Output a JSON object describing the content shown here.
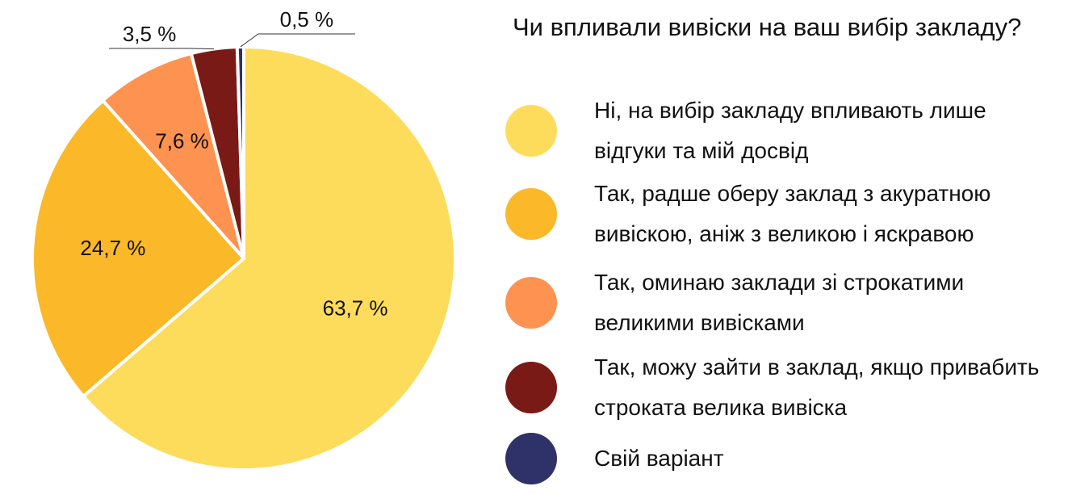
{
  "chart_data": {
    "type": "pie",
    "title": "Чи впливали вивіски на ваш вибір закладу?",
    "categories": [
      "Ні, на вибір закладу впливають лише відгуки та мій досвід",
      "Так, радше оберу заклад з акуратною вивіскою, аніж з великою і яскравою",
      "Так, оминаю заклади зі строкатими великими вивісками",
      "Так, можу зайти в заклад, якщо привабить строката велика вивіска",
      "Свій варіант"
    ],
    "values": [
      63.7,
      24.7,
      7.6,
      3.5,
      0.5
    ],
    "value_labels": [
      "63,7 %",
      "24,7 %",
      "7,6 %",
      "3,5 %",
      "0,5 %"
    ],
    "colors": [
      "#fddc5c",
      "#fbb829",
      "#fd9251",
      "#7a1a16",
      "#2f3269"
    ]
  }
}
